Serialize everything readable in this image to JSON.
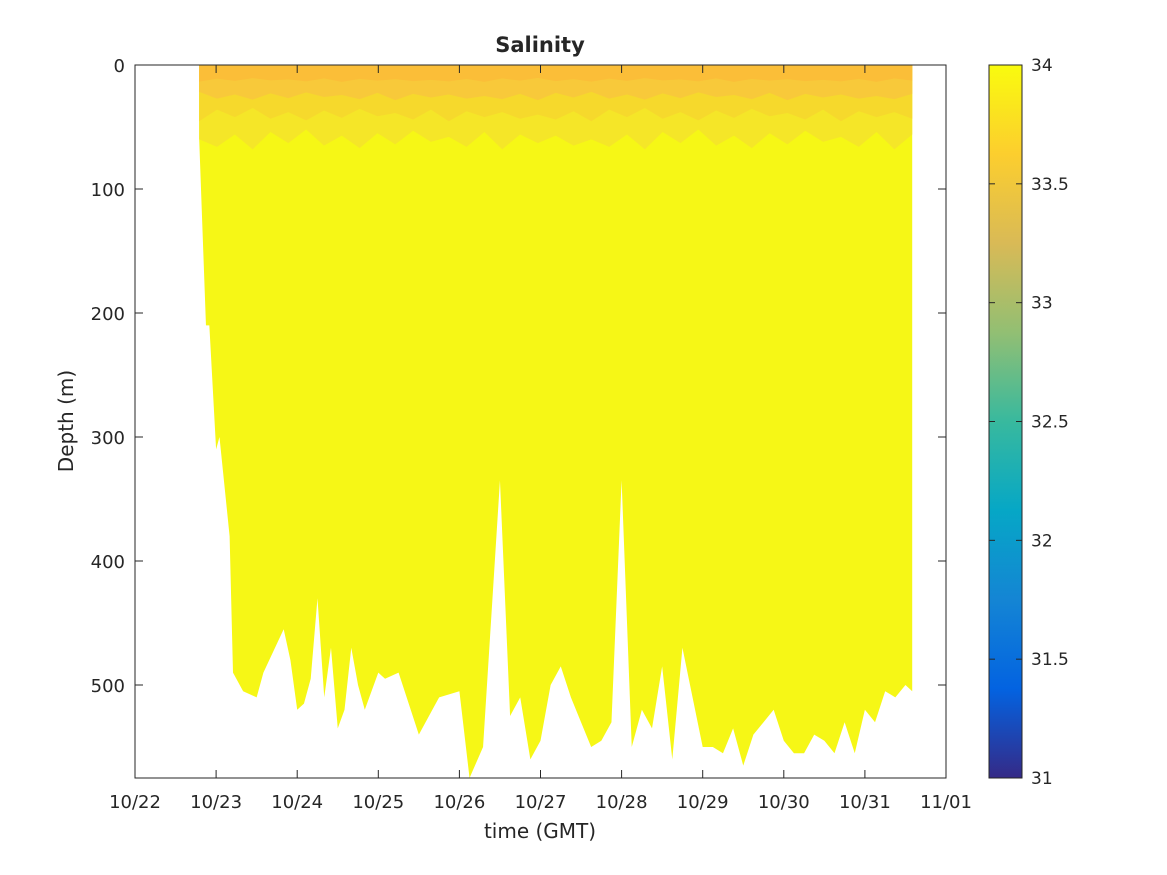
{
  "chart_data": {
    "type": "heatmap",
    "subtype": "filled contour",
    "title": "Salinity",
    "xlabel": "time (GMT)",
    "ylabel": "Depth (m)",
    "x_ticks": [
      "10/22",
      "10/23",
      "10/24",
      "10/25",
      "10/26",
      "10/27",
      "10/28",
      "10/29",
      "10/30",
      "10/31",
      "11/01"
    ],
    "xlim": [
      "10/22",
      "11/01"
    ],
    "y_ticks": [
      "0",
      "100",
      "200",
      "300",
      "400",
      "500"
    ],
    "ylim": [
      0,
      575
    ],
    "y_reversed": true,
    "grid": false,
    "colorbar": {
      "ticks": [
        "31",
        "31.5",
        "32",
        "32.5",
        "33",
        "33.5",
        "34"
      ],
      "range": [
        31,
        34
      ],
      "colormap": "parula"
    },
    "data_extent": {
      "start": "10/22 19:00",
      "end": "10/31 14:00"
    },
    "surface_layer": {
      "depth_range": [
        0,
        60
      ],
      "salinity_range": [
        33.6,
        33.9
      ]
    },
    "deep_layer": {
      "salinity": 34.0
    },
    "max_depth_profile": {
      "time": [
        "10/22 19:00",
        "10/22 21:00",
        "10/22 22:00",
        "10/23 00:00",
        "10/23 01:00",
        "10/23 04:00",
        "10/23 05:00",
        "10/23 08:00",
        "10/23 12:00",
        "10/23 14:00",
        "10/23 20:00",
        "10/23 22:00",
        "10/24 00:00",
        "10/24 02:00",
        "10/24 04:00",
        "10/24 06:00",
        "10/24 08:00",
        "10/24 10:00",
        "10/24 12:00",
        "10/24 14:00",
        "10/24 16:00",
        "10/24 18:00",
        "10/24 20:00",
        "10/25 00:00",
        "10/25 02:00",
        "10/25 06:00",
        "10/25 12:00",
        "10/25 16:00",
        "10/25 18:00",
        "10/26 00:00",
        "10/26 03:00",
        "10/26 07:00",
        "10/26 12:00",
        "10/26 15:00",
        "10/26 18:00",
        "10/26 21:00",
        "10/27 00:00",
        "10/27 03:00",
        "10/27 06:00",
        "10/27 09:00",
        "10/27 12:00",
        "10/27 15:00",
        "10/27 18:00",
        "10/27 21:00",
        "10/28 00:00",
        "10/28 03:00",
        "10/28 06:00",
        "10/28 09:00",
        "10/28 12:00",
        "10/28 15:00",
        "10/28 18:00",
        "10/28 21:00",
        "10/29 00:00",
        "10/29 03:00",
        "10/29 06:00",
        "10/29 09:00",
        "10/29 12:00",
        "10/29 15:00",
        "10/29 18:00",
        "10/29 21:00",
        "10/30 00:00",
        "10/30 03:00",
        "10/30 06:00",
        "10/30 09:00",
        "10/30 12:00",
        "10/30 15:00",
        "10/30 18:00",
        "10/30 21:00",
        "10/31 00:00",
        "10/31 03:00",
        "10/31 06:00",
        "10/31 09:00",
        "10/31 12:00",
        "10/31 14:00"
      ],
      "depth": [
        60,
        210,
        210,
        310,
        300,
        380,
        490,
        505,
        510,
        490,
        455,
        480,
        520,
        515,
        495,
        430,
        510,
        470,
        535,
        520,
        470,
        500,
        520,
        490,
        495,
        490,
        540,
        520,
        510,
        505,
        575,
        550,
        335,
        525,
        510,
        560,
        545,
        500,
        485,
        510,
        530,
        550,
        545,
        530,
        335,
        550,
        520,
        535,
        485,
        560,
        470,
        510,
        550,
        550,
        555,
        535,
        565,
        540,
        530,
        520,
        545,
        555,
        555,
        540,
        545,
        555,
        530,
        555,
        520,
        530,
        505,
        510,
        500,
        505
      ]
    }
  }
}
